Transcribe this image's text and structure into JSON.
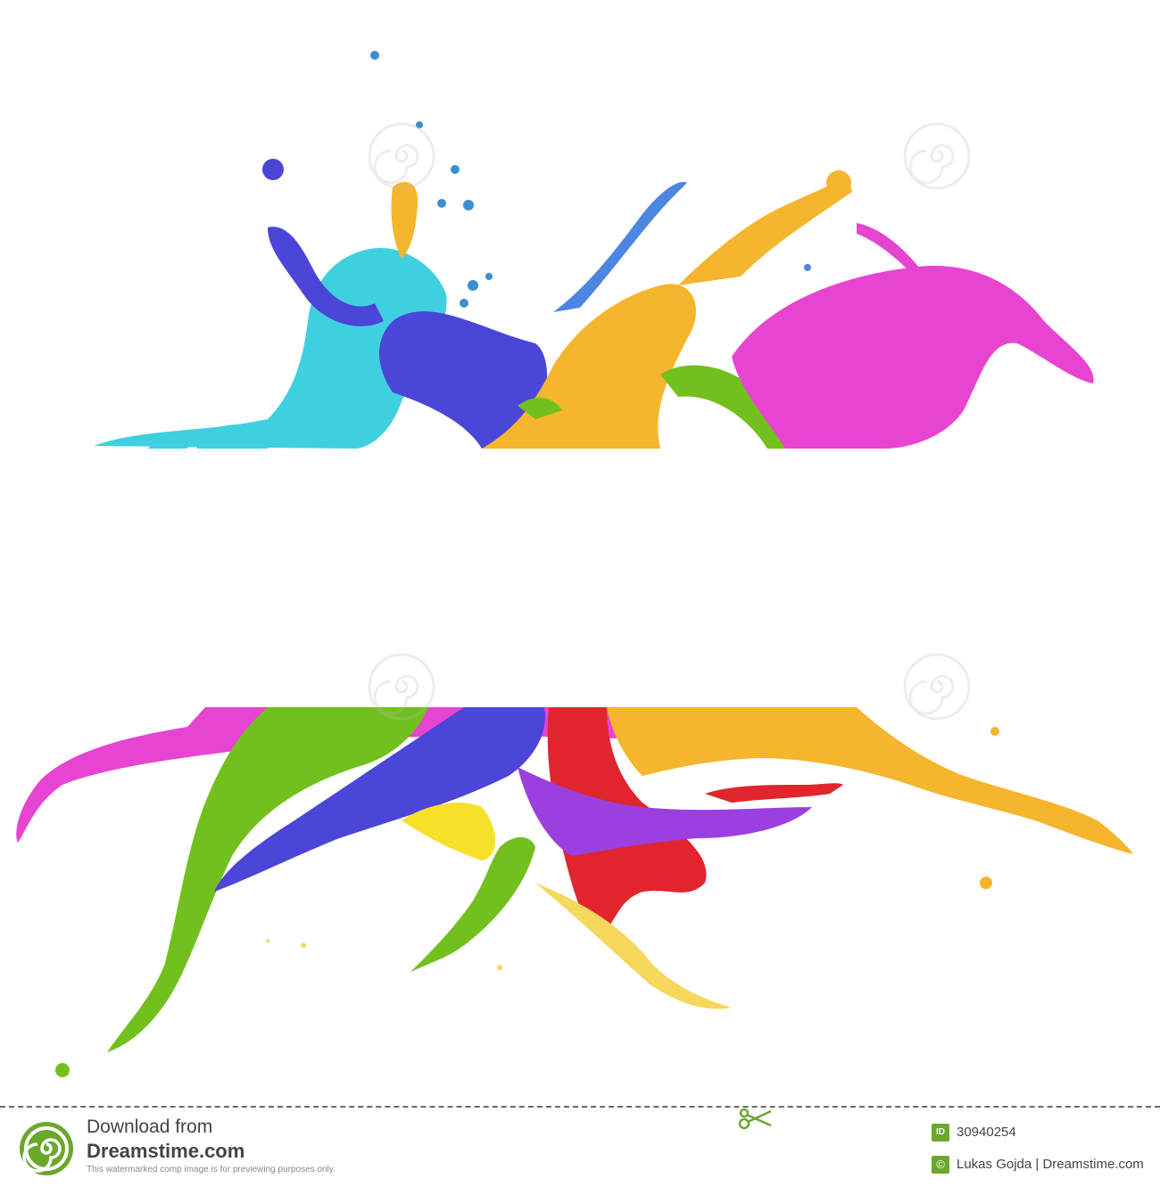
{
  "image": {
    "subject": "colorful paint splashes framing a blank white band",
    "palette": {
      "cyan": "#3fd0e0",
      "blue": "#4b45d8",
      "yellow": "#f5b52c",
      "green": "#72c01e",
      "magenta": "#e744d2",
      "purple": "#9b3fe0",
      "red": "#e0252e",
      "light_blue": "#4d86e0"
    }
  },
  "footer": {
    "download_label": "Download from",
    "brand_label": "Dreamstime.com",
    "disclaimer": "This watermarked comp image is for previewing purposes only.",
    "id_badge": "ID",
    "id_value": "30940254",
    "credit": "Lukas Gojda | Dreamstime.com"
  },
  "icons": {
    "brand_logo": "spiral-logo-icon",
    "scissors": "scissors-icon",
    "copyright": "copyright-icon"
  }
}
